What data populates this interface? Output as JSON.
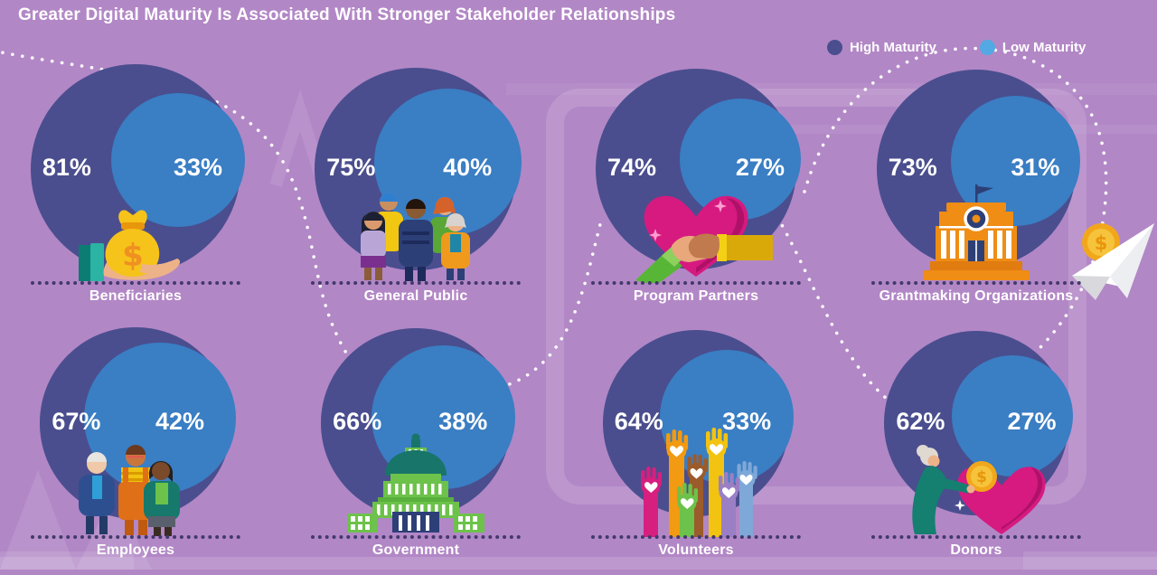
{
  "title": "Greater Digital Maturity Is Associated With Stronger Stakeholder Relationships",
  "legend": {
    "items": [
      {
        "label": "High Maturity",
        "color": "#4a4e8e"
      },
      {
        "label": "Low Maturity",
        "color": "#52a9e3"
      }
    ]
  },
  "colors": {
    "background": "#b287c6",
    "high_circle": "#4a4e8e",
    "low_circle": "#3a7ec4",
    "text": "#ffffff",
    "separator_dots": "#43396b"
  },
  "chart_data": {
    "type": "proportional-circle-pairs",
    "title": "Greater Digital Maturity Is Associated With Stronger Stakeholder Relationships",
    "value_format": "percent",
    "legend_position": "top-right",
    "categories": [
      "Beneficiaries",
      "General Public",
      "Program Partners",
      "Grantmaking Organizations",
      "Employees",
      "Government",
      "Volunteers",
      "Donors"
    ],
    "series": [
      {
        "name": "High Maturity",
        "color": "#4a4e8e",
        "values": [
          81,
          75,
          74,
          73,
          67,
          66,
          64,
          62
        ]
      },
      {
        "name": "Low Maturity",
        "color": "#3a7ec4",
        "values": [
          33,
          40,
          27,
          31,
          42,
          38,
          33,
          27
        ]
      }
    ],
    "display": [
      {
        "high": "81%",
        "low": "33%"
      },
      {
        "high": "75%",
        "low": "40%"
      },
      {
        "high": "74%",
        "low": "27%"
      },
      {
        "high": "73%",
        "low": "31%"
      },
      {
        "high": "67%",
        "low": "42%"
      },
      {
        "high": "66%",
        "low": "38%"
      },
      {
        "high": "64%",
        "low": "33%"
      },
      {
        "high": "62%",
        "low": "27%"
      }
    ],
    "icons": [
      "hand-money-bag",
      "people-group",
      "heart-handshake",
      "grant-building",
      "employees-group",
      "capitol-building",
      "volunteer-hands",
      "donor-heart-coin"
    ]
  }
}
